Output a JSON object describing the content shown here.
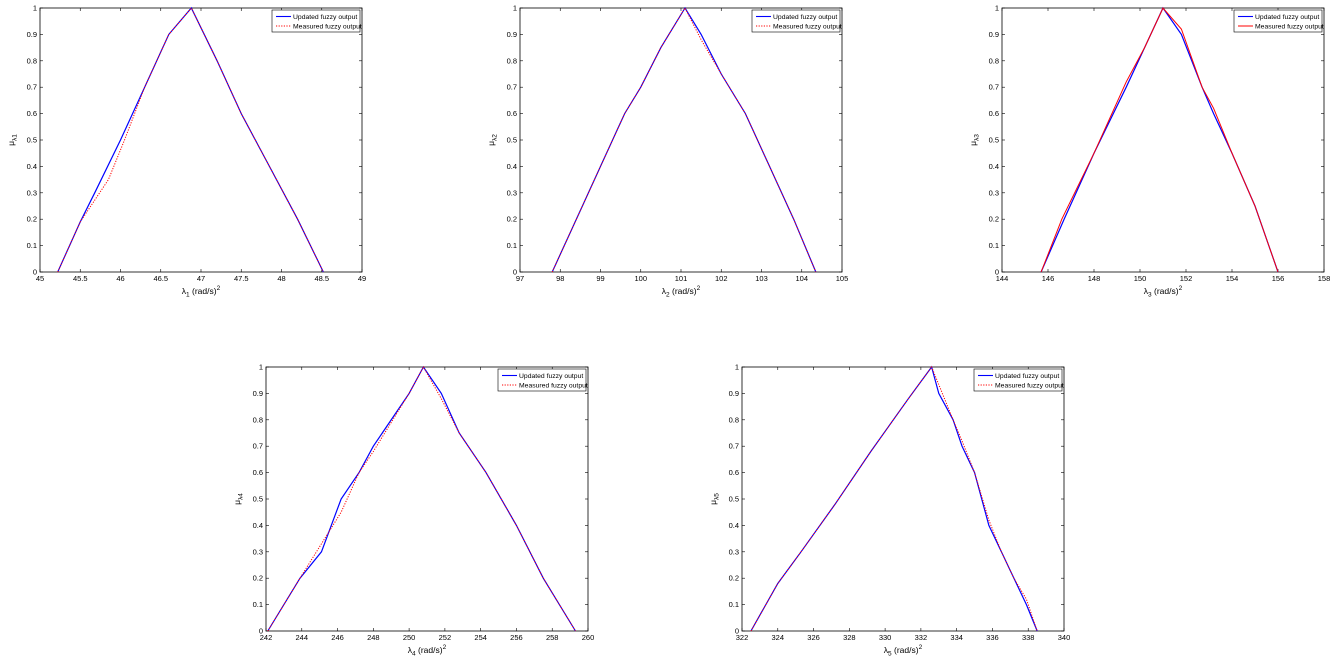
{
  "legend": {
    "updated_label": "Updated fuzzy output",
    "measured_label": "Measured fuzzy output"
  },
  "colors": {
    "updated": "#0000ff",
    "measured": "#ff0000",
    "axes": "#000000",
    "background": "#ffffff"
  },
  "chart_data": [
    {
      "type": "line",
      "xlabel": "λ1 (rad/s)2",
      "xlabel_parts": {
        "symbol": "λ",
        "sub": "1",
        "unit": " (rad/s)",
        "sup": "2"
      },
      "ylabel": "μλ1",
      "ylabel_parts": {
        "symbol": "μ",
        "sub": "λ1"
      },
      "xlim": [
        45,
        49
      ],
      "ylim": [
        0,
        1
      ],
      "xticks": [
        45,
        45.5,
        46,
        46.5,
        47,
        47.5,
        48,
        48.5,
        49
      ],
      "yticks": [
        0,
        0.1,
        0.2,
        0.3,
        0.4,
        0.5,
        0.6,
        0.7,
        0.8,
        0.9,
        1
      ],
      "grid": false,
      "legend_position": "top-right",
      "series": [
        {
          "name": "Updated fuzzy output",
          "style": "solid",
          "x": [
            45.22,
            45.5,
            45.68,
            46.0,
            46.3,
            46.6,
            46.88,
            47.2,
            47.5,
            47.85,
            48.2,
            48.52
          ],
          "y": [
            0,
            0.19,
            0.3,
            0.5,
            0.7,
            0.9,
            1,
            0.8,
            0.6,
            0.4,
            0.2,
            0
          ]
        },
        {
          "name": "Measured fuzzy output",
          "style": "dotted",
          "x": [
            45.22,
            45.5,
            45.85,
            46.05,
            46.3,
            46.6,
            46.88,
            47.2,
            47.5,
            47.85,
            48.2,
            48.52
          ],
          "y": [
            0,
            0.19,
            0.35,
            0.5,
            0.7,
            0.9,
            1,
            0.8,
            0.6,
            0.4,
            0.2,
            0
          ]
        }
      ]
    },
    {
      "type": "line",
      "xlabel": "λ2 (rad/s)2",
      "xlabel_parts": {
        "symbol": "λ",
        "sub": "2",
        "unit": " (rad/s)",
        "sup": "2"
      },
      "ylabel": "μλ2",
      "ylabel_parts": {
        "symbol": "μ",
        "sub": "λ2"
      },
      "xlim": [
        97,
        105
      ],
      "ylim": [
        0,
        1
      ],
      "xticks": [
        97,
        98,
        99,
        100,
        101,
        102,
        103,
        104,
        105
      ],
      "yticks": [
        0,
        0.1,
        0.2,
        0.3,
        0.4,
        0.5,
        0.6,
        0.7,
        0.8,
        0.9,
        1
      ],
      "grid": false,
      "legend_position": "top-right",
      "series": [
        {
          "name": "Updated fuzzy output",
          "style": "solid",
          "x": [
            97.8,
            98.4,
            99.0,
            99.6,
            100.0,
            100.5,
            101.1,
            101.5,
            102.0,
            102.6,
            103.2,
            103.8,
            104.35
          ],
          "y": [
            0,
            0.2,
            0.4,
            0.6,
            0.7,
            0.85,
            1,
            0.9,
            0.75,
            0.6,
            0.4,
            0.2,
            0
          ]
        },
        {
          "name": "Measured fuzzy output",
          "style": "dotted",
          "x": [
            97.8,
            98.4,
            99.0,
            99.6,
            100.0,
            100.5,
            101.1,
            101.5,
            102.0,
            102.6,
            103.2,
            103.8,
            104.35
          ],
          "y": [
            0,
            0.2,
            0.4,
            0.6,
            0.7,
            0.85,
            1,
            0.88,
            0.75,
            0.6,
            0.4,
            0.2,
            0
          ]
        }
      ]
    },
    {
      "type": "line",
      "xlabel": "λ3 (rad/s)2",
      "xlabel_parts": {
        "symbol": "λ",
        "sub": "3",
        "unit": " (rad/s)",
        "sup": "2"
      },
      "ylabel": "μλ3",
      "ylabel_parts": {
        "symbol": "μ",
        "sub": "λ3"
      },
      "xlim": [
        144,
        158
      ],
      "ylim": [
        0,
        1
      ],
      "xticks": [
        144,
        146,
        148,
        150,
        152,
        154,
        156,
        158
      ],
      "yticks": [
        0,
        0.1,
        0.2,
        0.3,
        0.4,
        0.5,
        0.6,
        0.7,
        0.8,
        0.9,
        1
      ],
      "grid": false,
      "legend_position": "top-right",
      "series": [
        {
          "name": "Updated fuzzy output",
          "style": "solid",
          "x": [
            145.7,
            146.7,
            148.0,
            149.4,
            150.2,
            151.0,
            151.8,
            152.7,
            153.2,
            154.0,
            155.0,
            156.0
          ],
          "y": [
            0,
            0.2,
            0.45,
            0.7,
            0.85,
            1,
            0.9,
            0.7,
            0.6,
            0.45,
            0.25,
            0
          ]
        },
        {
          "name": "Measured fuzzy output",
          "style": "solid",
          "x": [
            145.7,
            146.6,
            148.0,
            149.4,
            150.2,
            151.0,
            151.8,
            152.7,
            153.2,
            154.0,
            155.0,
            156.0
          ],
          "y": [
            0,
            0.2,
            0.45,
            0.72,
            0.85,
            1,
            0.92,
            0.7,
            0.62,
            0.45,
            0.25,
            0
          ]
        }
      ]
    },
    {
      "type": "line",
      "xlabel": "λ4 (rad/s)2",
      "xlabel_parts": {
        "symbol": "λ",
        "sub": "4",
        "unit": " (rad/s)",
        "sup": "2"
      },
      "ylabel": "μλ4",
      "ylabel_parts": {
        "symbol": "μ",
        "sub": "λ4"
      },
      "xlim": [
        242,
        260
      ],
      "ylim": [
        0,
        1
      ],
      "xticks": [
        242,
        244,
        246,
        248,
        250,
        252,
        254,
        256,
        258,
        260
      ],
      "yticks": [
        0,
        0.1,
        0.2,
        0.3,
        0.4,
        0.5,
        0.6,
        0.7,
        0.8,
        0.9,
        1
      ],
      "grid": false,
      "legend_position": "top-right",
      "series": [
        {
          "name": "Updated fuzzy output",
          "style": "solid",
          "x": [
            242.1,
            243.9,
            245.1,
            246.2,
            247.2,
            248.0,
            250.0,
            250.8,
            251.8,
            252.8,
            254.3,
            256.0,
            257.5,
            259.3
          ],
          "y": [
            0,
            0.2,
            0.3,
            0.5,
            0.6,
            0.7,
            0.9,
            1,
            0.9,
            0.75,
            0.6,
            0.4,
            0.2,
            0
          ]
        },
        {
          "name": "Measured fuzzy output",
          "style": "dotted",
          "x": [
            242.1,
            243.9,
            246.2,
            247.2,
            248.0,
            250.0,
            250.8,
            251.8,
            252.8,
            254.3,
            256.0,
            257.5,
            259.3
          ],
          "y": [
            0,
            0.2,
            0.45,
            0.6,
            0.68,
            0.9,
            1,
            0.88,
            0.75,
            0.6,
            0.4,
            0.2,
            0
          ]
        }
      ]
    },
    {
      "type": "line",
      "xlabel": "λ5 (rad/s)2",
      "xlabel_parts": {
        "symbol": "λ",
        "sub": "5",
        "unit": " (rad/s)",
        "sup": "2"
      },
      "ylabel": "μλ5",
      "ylabel_parts": {
        "symbol": "μ",
        "sub": "λ5"
      },
      "xlim": [
        322,
        340
      ],
      "ylim": [
        0,
        1
      ],
      "xticks": [
        322,
        324,
        326,
        328,
        330,
        332,
        334,
        336,
        338,
        340
      ],
      "yticks": [
        0,
        0.1,
        0.2,
        0.3,
        0.4,
        0.5,
        0.6,
        0.7,
        0.8,
        0.9,
        1
      ],
      "grid": false,
      "legend_position": "top-right",
      "series": [
        {
          "name": "Updated fuzzy output",
          "style": "solid",
          "x": [
            322.5,
            324.0,
            325.3,
            327.2,
            329.2,
            331.3,
            332.6,
            333.0,
            333.8,
            334.3,
            335.0,
            335.8,
            336.5,
            337.2,
            337.9,
            338.5
          ],
          "y": [
            0,
            0.18,
            0.3,
            0.48,
            0.68,
            0.88,
            1,
            0.9,
            0.8,
            0.7,
            0.6,
            0.4,
            0.3,
            0.2,
            0.1,
            0
          ]
        },
        {
          "name": "Measured fuzzy output",
          "style": "dotted",
          "x": [
            322.5,
            324.0,
            325.3,
            327.2,
            329.2,
            331.3,
            332.6,
            333.8,
            334.3,
            335.0,
            335.8,
            336.5,
            337.2,
            337.9,
            338.5
          ],
          "y": [
            0,
            0.18,
            0.3,
            0.48,
            0.68,
            0.88,
            1,
            0.8,
            0.72,
            0.6,
            0.42,
            0.3,
            0.2,
            0.12,
            0
          ]
        }
      ]
    }
  ]
}
